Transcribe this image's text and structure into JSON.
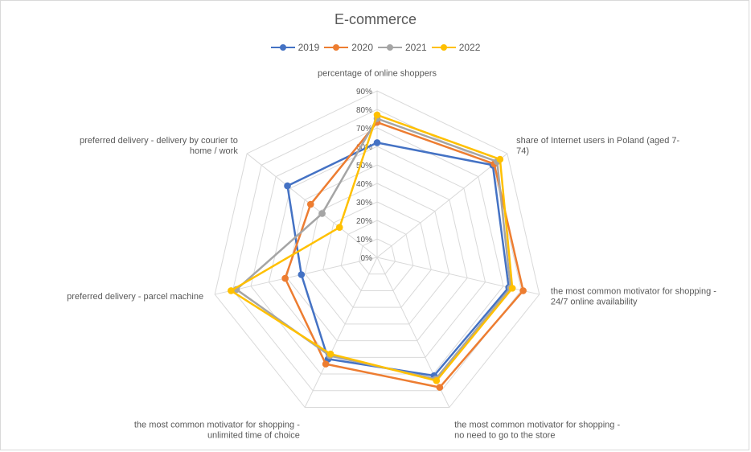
{
  "chart_data": {
    "type": "radar",
    "title": "E-commerce",
    "categories": [
      "percentage of online shoppers",
      "share of Internet users in Poland (aged 7-74)",
      "the most common motivator for shopping - 24/7 online availability",
      "the most common motivator for shopping - no need to go to the store",
      "the most common motivator for shopping - unlimited time of choice",
      "preferred delivery - parcel machine",
      "preferred delivery - delivery by courier to home / work"
    ],
    "category_lines": [
      [
        "percentage of online shoppers"
      ],
      [
        "share of Internet users in Poland (aged 7-",
        "74)"
      ],
      [
        "the most common motivator for shopping -",
        "24/7 online availability"
      ],
      [
        "the most common motivator for shopping -",
        "no need to go to the store"
      ],
      [
        "the most common motivator for shopping -",
        "unlimited time of choice"
      ],
      [
        "preferred delivery - parcel machine"
      ],
      [
        "preferred delivery - delivery by courier to",
        "home / work"
      ]
    ],
    "ticks": [
      "0%",
      "10%",
      "20%",
      "30%",
      "40%",
      "50%",
      "60%",
      "70%",
      "80%",
      "90%"
    ],
    "rlim": [
      0,
      90
    ],
    "unit": "%",
    "legend_position": "top",
    "grid": true,
    "series": [
      {
        "name": "2019",
        "color": "#4472C4",
        "values": [
          62,
          80,
          73,
          71,
          61,
          42,
          62
        ]
      },
      {
        "name": "2020",
        "color": "#ED7D31",
        "values": [
          73,
          81,
          81,
          78,
          64,
          51,
          46
        ]
      },
      {
        "name": "2021",
        "color": "#A5A5A5",
        "values": [
          75,
          83,
          74,
          73,
          59,
          78,
          38
        ]
      },
      {
        "name": "2022",
        "color": "#FFC000",
        "values": [
          77,
          85,
          75,
          74,
          58,
          81,
          26
        ]
      }
    ]
  }
}
